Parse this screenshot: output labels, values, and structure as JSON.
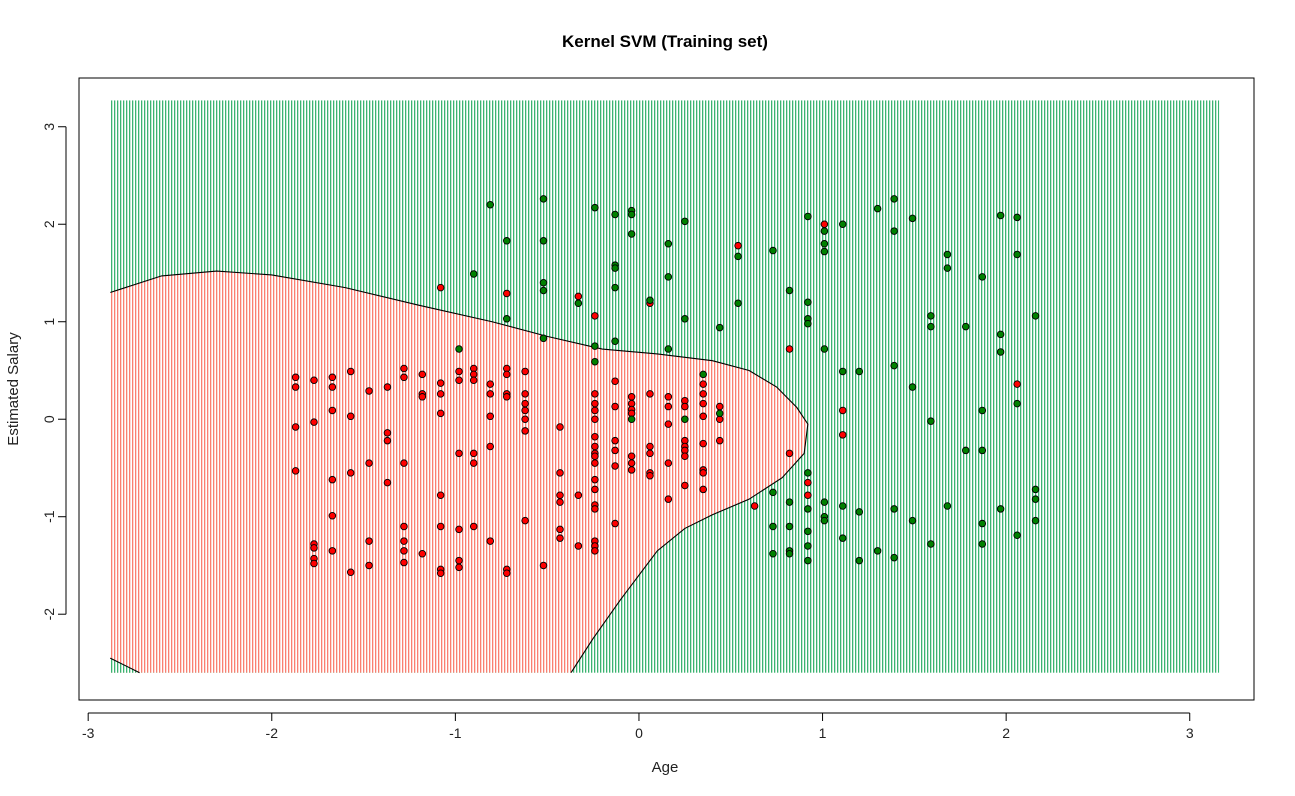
{
  "chart_data": {
    "type": "scatter",
    "title": "Kernel SVM (Training set)",
    "xlabel": "Age",
    "ylabel": "Estimated Salary",
    "xlim": [
      -3.05,
      3.35
    ],
    "ylim": [
      -2.88,
      3.5
    ],
    "x_ticks": [
      -3,
      -2,
      -1,
      0,
      1,
      2,
      3
    ],
    "y_ticks": [
      -2,
      -1,
      0,
      1,
      2,
      3
    ],
    "grid_extent": {
      "x": [
        -2.88,
        3.16
      ],
      "y": [
        -2.6,
        3.27
      ]
    },
    "region_colors": {
      "class_0": "#fa8072",
      "class_1": "#3cb371"
    },
    "point_colors": {
      "class_0": "#ff0000",
      "class_1": "#008000"
    },
    "boundary_right": [
      [
        -2.88,
        1.3
      ],
      [
        -2.6,
        1.47
      ],
      [
        -2.3,
        1.52
      ],
      [
        -2.0,
        1.48
      ],
      [
        -1.6,
        1.35
      ],
      [
        -1.2,
        1.17
      ],
      [
        -0.8,
        1.0
      ],
      [
        -0.5,
        0.85
      ],
      [
        -0.2,
        0.72
      ],
      [
        0.1,
        0.67
      ],
      [
        0.4,
        0.6
      ],
      [
        0.6,
        0.5
      ],
      [
        0.75,
        0.33
      ],
      [
        0.86,
        0.12
      ],
      [
        0.92,
        -0.05
      ],
      [
        0.9,
        -0.35
      ],
      [
        0.78,
        -0.6
      ],
      [
        0.6,
        -0.82
      ],
      [
        0.4,
        -0.98
      ],
      [
        0.25,
        -1.12
      ],
      [
        0.1,
        -1.35
      ],
      [
        -0.1,
        -1.85
      ],
      [
        -0.25,
        -2.25
      ],
      [
        -0.37,
        -2.6
      ]
    ],
    "boundary_bottom_left": [
      [
        -2.88,
        -2.45
      ],
      [
        -2.72,
        -2.6
      ]
    ],
    "series": [
      {
        "class": "0",
        "points": [
          [
            -1.87,
            0.43
          ],
          [
            -1.87,
            0.33
          ],
          [
            -1.87,
            -0.08
          ],
          [
            -1.87,
            -0.53
          ],
          [
            -1.77,
            0.4
          ],
          [
            -1.77,
            -0.03
          ],
          [
            -1.77,
            -1.28
          ],
          [
            -1.77,
            -1.32
          ],
          [
            -1.77,
            -1.43
          ],
          [
            -1.77,
            -1.48
          ],
          [
            -1.67,
            0.43
          ],
          [
            -1.67,
            0.33
          ],
          [
            -1.67,
            0.09
          ],
          [
            -1.67,
            -0.62
          ],
          [
            -1.67,
            -0.99
          ],
          [
            -1.67,
            -1.35
          ],
          [
            -1.57,
            0.49
          ],
          [
            -1.57,
            0.03
          ],
          [
            -1.57,
            -0.55
          ],
          [
            -1.57,
            -1.57
          ],
          [
            -1.47,
            0.29
          ],
          [
            -1.47,
            -0.45
          ],
          [
            -1.47,
            -1.25
          ],
          [
            -1.47,
            -1.5
          ],
          [
            -1.37,
            0.33
          ],
          [
            -1.37,
            -0.14
          ],
          [
            -1.37,
            -0.22
          ],
          [
            -1.37,
            -0.65
          ],
          [
            -1.28,
            0.52
          ],
          [
            -1.28,
            0.43
          ],
          [
            -1.28,
            -0.45
          ],
          [
            -1.28,
            -1.1
          ],
          [
            -1.28,
            -1.25
          ],
          [
            -1.28,
            -1.35
          ],
          [
            -1.28,
            -1.47
          ],
          [
            -1.18,
            0.46
          ],
          [
            -1.18,
            0.26
          ],
          [
            -1.18,
            0.23
          ],
          [
            -1.18,
            -1.38
          ],
          [
            -1.08,
            1.35
          ],
          [
            -1.08,
            0.37
          ],
          [
            -1.08,
            0.26
          ],
          [
            -1.08,
            0.06
          ],
          [
            -1.08,
            -0.78
          ],
          [
            -1.08,
            -1.1
          ],
          [
            -1.08,
            -1.54
          ],
          [
            -1.08,
            -1.58
          ],
          [
            -0.98,
            0.49
          ],
          [
            -0.98,
            0.4
          ],
          [
            -0.98,
            -0.35
          ],
          [
            -0.98,
            -1.13
          ],
          [
            -0.98,
            -1.45
          ],
          [
            -0.98,
            -1.52
          ],
          [
            -0.9,
            0.52
          ],
          [
            -0.9,
            0.46
          ],
          [
            -0.9,
            0.4
          ],
          [
            -0.9,
            -0.35
          ],
          [
            -0.9,
            -0.45
          ],
          [
            -0.9,
            -1.1
          ],
          [
            -0.81,
            0.36
          ],
          [
            -0.81,
            0.26
          ],
          [
            -0.81,
            0.03
          ],
          [
            -0.81,
            -0.28
          ],
          [
            -0.81,
            -1.25
          ],
          [
            -0.72,
            1.29
          ],
          [
            -0.72,
            0.52
          ],
          [
            -0.72,
            0.46
          ],
          [
            -0.72,
            0.26
          ],
          [
            -0.72,
            0.23
          ],
          [
            -0.72,
            -1.54
          ],
          [
            -0.72,
            -1.58
          ],
          [
            -0.62,
            0.49
          ],
          [
            -0.62,
            0.26
          ],
          [
            -0.62,
            0.16
          ],
          [
            -0.62,
            0.09
          ],
          [
            -0.62,
            0.0
          ],
          [
            -0.62,
            -0.12
          ],
          [
            -0.62,
            -1.04
          ],
          [
            -0.52,
            -1.5
          ],
          [
            -0.43,
            -0.08
          ],
          [
            -0.43,
            -0.55
          ],
          [
            -0.43,
            -0.78
          ],
          [
            -0.43,
            -0.85
          ],
          [
            -0.43,
            -1.13
          ],
          [
            -0.43,
            -1.22
          ],
          [
            -0.33,
            1.26
          ],
          [
            -0.33,
            -0.78
          ],
          [
            -0.33,
            -1.3
          ],
          [
            -0.24,
            1.06
          ],
          [
            -0.24,
            0.26
          ],
          [
            -0.24,
            0.16
          ],
          [
            -0.24,
            0.09
          ],
          [
            -0.24,
            0.0
          ],
          [
            -0.24,
            -0.18
          ],
          [
            -0.24,
            -0.28
          ],
          [
            -0.24,
            -0.35
          ],
          [
            -0.24,
            -0.38
          ],
          [
            -0.24,
            -0.45
          ],
          [
            -0.24,
            -0.62
          ],
          [
            -0.24,
            -0.72
          ],
          [
            -0.24,
            -0.88
          ],
          [
            -0.24,
            -0.92
          ],
          [
            -0.24,
            -1.25
          ],
          [
            -0.24,
            -1.3
          ],
          [
            -0.24,
            -1.35
          ],
          [
            -0.13,
            0.39
          ],
          [
            -0.13,
            0.13
          ],
          [
            -0.13,
            -0.22
          ],
          [
            -0.13,
            -0.32
          ],
          [
            -0.13,
            -0.48
          ],
          [
            -0.13,
            -1.07
          ],
          [
            -0.04,
            0.23
          ],
          [
            -0.04,
            0.16
          ],
          [
            -0.04,
            0.1
          ],
          [
            -0.04,
            0.06
          ],
          [
            -0.04,
            -0.38
          ],
          [
            -0.04,
            -0.45
          ],
          [
            -0.04,
            -0.52
          ],
          [
            0.06,
            1.19
          ],
          [
            0.06,
            0.26
          ],
          [
            0.06,
            -0.28
          ],
          [
            0.06,
            -0.35
          ],
          [
            0.06,
            -0.55
          ],
          [
            0.06,
            -0.58
          ],
          [
            0.16,
            0.23
          ],
          [
            0.16,
            0.13
          ],
          [
            0.16,
            -0.05
          ],
          [
            0.16,
            -0.45
          ],
          [
            0.16,
            -0.82
          ],
          [
            0.25,
            0.19
          ],
          [
            0.25,
            0.13
          ],
          [
            0.25,
            -0.22
          ],
          [
            0.25,
            -0.28
          ],
          [
            0.25,
            -0.32
          ],
          [
            0.25,
            -0.38
          ],
          [
            0.25,
            -0.68
          ],
          [
            0.35,
            0.36
          ],
          [
            0.35,
            0.26
          ],
          [
            0.35,
            0.16
          ],
          [
            0.35,
            0.03
          ],
          [
            0.35,
            -0.25
          ],
          [
            0.35,
            -0.52
          ],
          [
            0.35,
            -0.55
          ],
          [
            0.35,
            -0.72
          ],
          [
            0.44,
            0.13
          ],
          [
            0.44,
            0.0
          ],
          [
            0.44,
            -0.22
          ],
          [
            0.54,
            1.78
          ],
          [
            0.63,
            -0.89
          ],
          [
            0.82,
            0.72
          ],
          [
            0.82,
            -0.35
          ],
          [
            0.92,
            -0.65
          ],
          [
            0.92,
            -0.78
          ],
          [
            1.01,
            2.0
          ],
          [
            1.11,
            0.09
          ],
          [
            1.11,
            -0.16
          ],
          [
            2.06,
            0.36
          ]
        ]
      },
      {
        "class": "1",
        "points": [
          [
            -0.81,
            2.2
          ],
          [
            -0.52,
            2.26
          ],
          [
            -0.72,
            1.83
          ],
          [
            -0.52,
            1.83
          ],
          [
            -0.52,
            1.4
          ],
          [
            -0.52,
            1.32
          ],
          [
            -0.9,
            1.49
          ],
          [
            -0.72,
            1.03
          ],
          [
            -0.52,
            0.83
          ],
          [
            -0.98,
            0.72
          ],
          [
            -0.33,
            1.19
          ],
          [
            -0.24,
            2.17
          ],
          [
            -0.13,
            2.1
          ],
          [
            -0.04,
            2.14
          ],
          [
            -0.04,
            2.1
          ],
          [
            -0.04,
            1.9
          ],
          [
            -0.13,
            1.58
          ],
          [
            -0.13,
            1.55
          ],
          [
            -0.13,
            1.35
          ],
          [
            -0.24,
            0.75
          ],
          [
            -0.24,
            0.59
          ],
          [
            -0.13,
            0.8
          ],
          [
            0.06,
            1.22
          ],
          [
            0.16,
            1.8
          ],
          [
            0.16,
            1.46
          ],
          [
            0.25,
            2.03
          ],
          [
            0.25,
            1.03
          ],
          [
            0.16,
            0.72
          ],
          [
            0.44,
            0.94
          ],
          [
            0.54,
            1.67
          ],
          [
            0.54,
            1.19
          ],
          [
            -0.04,
            0.0
          ],
          [
            0.25,
            0.0
          ],
          [
            0.35,
            0.46
          ],
          [
            0.44,
            0.06
          ],
          [
            0.73,
            1.73
          ],
          [
            0.82,
            1.32
          ],
          [
            0.92,
            2.08
          ],
          [
            0.92,
            1.2
          ],
          [
            0.92,
            1.03
          ],
          [
            0.92,
            0.98
          ],
          [
            1.01,
            1.93
          ],
          [
            1.01,
            1.8
          ],
          [
            1.01,
            1.72
          ],
          [
            1.01,
            0.72
          ],
          [
            1.11,
            2.0
          ],
          [
            1.11,
            0.49
          ],
          [
            1.2,
            0.49
          ],
          [
            1.3,
            2.16
          ],
          [
            1.39,
            2.26
          ],
          [
            1.39,
            1.93
          ],
          [
            1.39,
            0.55
          ],
          [
            1.49,
            2.06
          ],
          [
            1.49,
            0.33
          ],
          [
            1.59,
            1.06
          ],
          [
            1.59,
            0.95
          ],
          [
            1.59,
            -0.02
          ],
          [
            1.68,
            1.69
          ],
          [
            1.68,
            1.55
          ],
          [
            1.78,
            0.95
          ],
          [
            1.87,
            1.46
          ],
          [
            1.97,
            2.09
          ],
          [
            1.97,
            0.87
          ],
          [
            1.97,
            0.69
          ],
          [
            2.06,
            2.07
          ],
          [
            2.06,
            1.69
          ],
          [
            2.06,
            0.16
          ],
          [
            2.16,
            1.06
          ],
          [
            1.78,
            -0.32
          ],
          [
            1.87,
            0.09
          ],
          [
            1.87,
            -0.32
          ],
          [
            0.73,
            -0.75
          ],
          [
            0.73,
            -1.1
          ],
          [
            0.73,
            -1.38
          ],
          [
            0.82,
            -0.85
          ],
          [
            0.82,
            -1.1
          ],
          [
            0.82,
            -1.35
          ],
          [
            0.82,
            -1.38
          ],
          [
            0.92,
            -0.55
          ],
          [
            0.92,
            -0.92
          ],
          [
            0.92,
            -1.15
          ],
          [
            0.92,
            -1.3
          ],
          [
            0.92,
            -1.45
          ],
          [
            1.01,
            -0.85
          ],
          [
            1.01,
            -1.0
          ],
          [
            1.01,
            -1.04
          ],
          [
            1.11,
            -0.89
          ],
          [
            1.11,
            -1.22
          ],
          [
            1.2,
            -0.95
          ],
          [
            1.2,
            -1.45
          ],
          [
            1.3,
            -1.35
          ],
          [
            1.39,
            -0.92
          ],
          [
            1.39,
            -1.42
          ],
          [
            1.49,
            -1.04
          ],
          [
            1.59,
            -1.28
          ],
          [
            1.68,
            -0.89
          ],
          [
            1.87,
            -1.07
          ],
          [
            1.87,
            -1.28
          ],
          [
            1.97,
            -0.92
          ],
          [
            2.06,
            -1.19
          ],
          [
            2.16,
            -0.72
          ],
          [
            2.16,
            -0.82
          ],
          [
            2.16,
            -1.04
          ]
        ]
      }
    ]
  }
}
